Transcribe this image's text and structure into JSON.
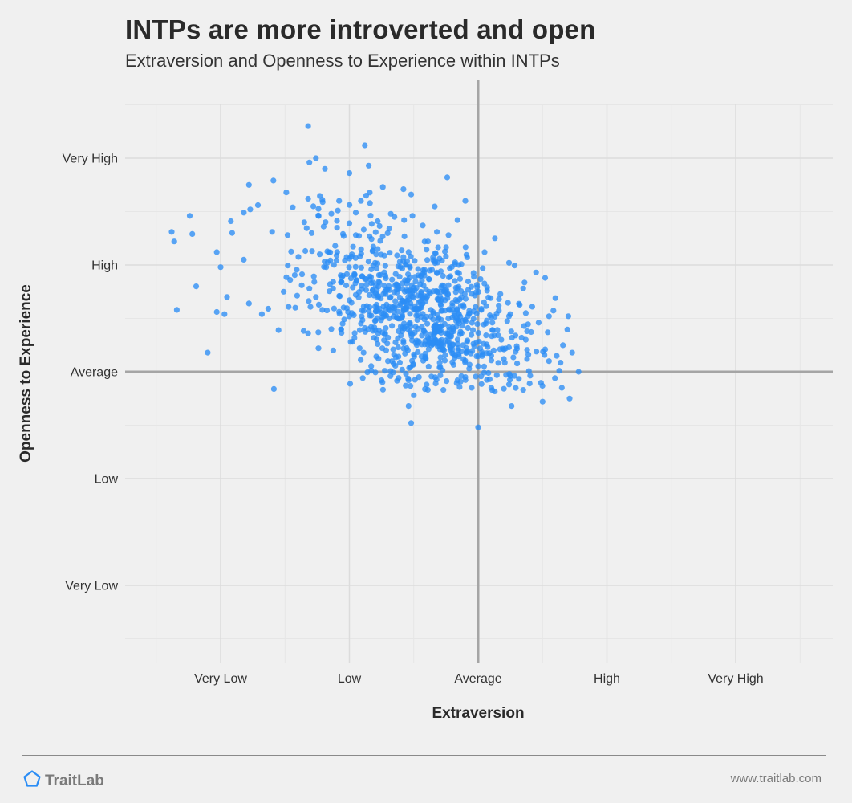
{
  "page": {
    "title": "INTPs are more introverted and open",
    "subtitle": "Extraversion and Openness to Experience within INTPs",
    "brand_name": "TraitLab",
    "brand_icon": "pentagon-logo-icon",
    "site_url": "www.traitlab.com"
  },
  "colors": {
    "point": "#2b8df5",
    "background": "#f0f0f0",
    "grid": "#dcdcdc",
    "reference_line": "#a5a5a5"
  },
  "chart_data": {
    "type": "scatter",
    "title": "INTPs are more introverted and open",
    "subtitle": "Extraversion and Openness to Experience within INTPs",
    "xlabel": "Extraversion",
    "ylabel": "Openness to Experience",
    "x_ticks": [
      {
        "value": -2,
        "label": "Very Low"
      },
      {
        "value": -1,
        "label": "Low"
      },
      {
        "value": 0,
        "label": "Average"
      },
      {
        "value": 1,
        "label": "High"
      },
      {
        "value": 2,
        "label": "Very High"
      }
    ],
    "y_ticks": [
      {
        "value": 2,
        "label": "Very High"
      },
      {
        "value": 1,
        "label": "High"
      },
      {
        "value": 0,
        "label": "Average"
      },
      {
        "value": -1,
        "label": "Low"
      },
      {
        "value": -2,
        "label": "Very Low"
      }
    ],
    "xlim": [
      -2.75,
      2.75
    ],
    "ylim": [
      -2.75,
      2.75
    ],
    "grid": true,
    "reference_lines": {
      "x": 0,
      "y": 0
    },
    "points": [
      [
        -1.32,
        2.3
      ],
      [
        -0.88,
        2.12
      ],
      [
        -1.26,
        2.0
      ],
      [
        -0.85,
        1.93
      ],
      [
        -1.78,
        1.75
      ],
      [
        -2.24,
        1.46
      ],
      [
        -2.22,
        1.29
      ],
      [
        -2.38,
        1.31
      ],
      [
        -2.36,
        1.22
      ],
      [
        -1.31,
        1.96
      ],
      [
        -1.19,
        1.9
      ],
      [
        -1.0,
        1.86
      ],
      [
        -0.24,
        1.82
      ],
      [
        -1.77,
        1.52
      ],
      [
        -1.82,
        1.49
      ],
      [
        -1.49,
        1.68
      ],
      [
        -1.59,
        1.79
      ],
      [
        -1.92,
        1.41
      ],
      [
        -1.71,
        1.56
      ],
      [
        -1.6,
        1.31
      ],
      [
        -1.82,
        1.05
      ],
      [
        -1.91,
        1.3
      ],
      [
        -2.0,
        0.98
      ],
      [
        -2.34,
        0.58
      ],
      [
        -2.03,
        0.56
      ],
      [
        -2.19,
        0.8
      ],
      [
        -1.95,
        0.7
      ],
      [
        -1.97,
        0.54
      ],
      [
        -1.78,
        0.64
      ],
      [
        -2.03,
        1.12
      ],
      [
        -1.68,
        0.54
      ],
      [
        -2.1,
        0.18
      ],
      [
        -1.14,
        1.48
      ],
      [
        -1.28,
        1.55
      ],
      [
        -1.48,
        1.28
      ],
      [
        -1.44,
        1.54
      ],
      [
        -1.32,
        1.62
      ],
      [
        -1.35,
        1.4
      ],
      [
        -1.29,
        1.13
      ],
      [
        -1.21,
        1.61
      ],
      [
        -1.23,
        1.1
      ],
      [
        -1.37,
        0.81
      ],
      [
        -1.51,
        0.75
      ],
      [
        -1.63,
        0.59
      ],
      [
        -1.46,
        0.86
      ],
      [
        -1.31,
        0.78
      ],
      [
        -0.95,
        1.49
      ],
      [
        -1.0,
        1.39
      ],
      [
        -1.08,
        1.6
      ],
      [
        -1.09,
        1.51
      ],
      [
        -0.91,
        1.6
      ],
      [
        -1.05,
        1.29
      ],
      [
        -0.84,
        1.58
      ],
      [
        -1.05,
        0.9
      ],
      [
        -1.18,
        0.98
      ],
      [
        -1.11,
        1.18
      ],
      [
        -1.0,
        1.06
      ],
      [
        -1.15,
        0.82
      ],
      [
        -1.26,
        0.7
      ],
      [
        -1.42,
        0.6
      ],
      [
        -1.55,
        0.39
      ],
      [
        -1.32,
        0.36
      ],
      [
        -0.87,
        1.65
      ],
      [
        -0.74,
        1.73
      ],
      [
        -0.58,
        1.71
      ],
      [
        -0.52,
        1.66
      ],
      [
        -0.65,
        1.45
      ],
      [
        -0.78,
        1.41
      ],
      [
        -0.69,
        1.34
      ],
      [
        -0.51,
        1.46
      ],
      [
        -0.43,
        1.37
      ],
      [
        -0.32,
        1.31
      ],
      [
        -0.39,
        1.22
      ],
      [
        -0.23,
        1.28
      ],
      [
        -0.16,
        1.42
      ],
      [
        -0.1,
        1.6
      ],
      [
        -0.15,
        1.0
      ],
      [
        -0.25,
        1.08
      ],
      [
        0.05,
        1.12
      ],
      [
        0.13,
        1.25
      ],
      [
        0.24,
        1.02
      ],
      [
        0.35,
        0.78
      ],
      [
        0.45,
        0.93
      ],
      [
        0.52,
        0.88
      ],
      [
        0.6,
        0.69
      ],
      [
        0.55,
        0.52
      ],
      [
        0.7,
        0.52
      ],
      [
        0.61,
        0.15
      ],
      [
        0.65,
        -0.15
      ],
      [
        0.78,
        0.0
      ],
      [
        0.71,
        -0.25
      ],
      [
        0.73,
        0.18
      ],
      [
        0.5,
        -0.28
      ],
      [
        0.35,
        -0.17
      ],
      [
        -0.52,
        -0.48
      ],
      [
        -1.24,
        0.22
      ],
      [
        -0.92,
        0.22
      ],
      [
        -0.54,
        -0.32
      ],
      [
        -0.5,
        -0.22
      ],
      [
        -0.4,
        -0.12
      ],
      [
        -0.27,
        -0.17
      ],
      [
        0.0,
        -0.52
      ],
      [
        -0.05,
        -0.15
      ],
      [
        0.09,
        -0.07
      ],
      [
        0.26,
        -0.32
      ],
      [
        0.4,
        -0.11
      ],
      [
        0.42,
        0.61
      ],
      [
        0.52,
        0.21
      ],
      [
        0.47,
        0.46
      ],
      [
        0.29,
        0.34
      ],
      [
        0.18,
        0.3
      ],
      [
        0.2,
        0.12
      ],
      [
        0.3,
        0.24
      ],
      [
        0.37,
        0.3
      ],
      [
        0.54,
        0.37
      ],
      [
        0.63,
        0.01
      ],
      [
        0.55,
        0.1
      ],
      [
        0.37,
        0.55
      ],
      [
        0.24,
        0.52
      ],
      [
        0.16,
        0.62
      ],
      [
        0.11,
        0.46
      ],
      [
        -0.42,
        0.38
      ],
      [
        -0.13,
        0.7
      ],
      [
        -0.08,
        0.41
      ],
      [
        -0.54,
        -0.08
      ],
      [
        -0.3,
        0.42
      ],
      [
        -0.46,
        -0.05
      ],
      [
        -0.16,
        -0.08
      ],
      [
        -0.2,
        0.09
      ],
      [
        -0.59,
        0.38
      ],
      [
        -0.59,
        0.02
      ],
      [
        -0.58,
        0.27
      ],
      [
        -0.78,
        1.15
      ],
      [
        -0.63,
        1.09
      ],
      [
        -0.56,
        1.0
      ],
      [
        -0.43,
        0.64
      ],
      [
        -0.35,
        1.07
      ],
      [
        -0.22,
        0.97
      ],
      [
        -0.18,
        0.85
      ],
      [
        -0.28,
        0.81
      ],
      [
        -0.49,
        0.59
      ],
      [
        -0.8,
        0.61
      ],
      [
        -0.73,
        0.52
      ],
      [
        -0.95,
        0.72
      ],
      [
        -1.04,
        0.49
      ],
      [
        -0.99,
        0.28
      ],
      [
        -0.88,
        0.41
      ],
      [
        -0.89,
        0.18
      ],
      [
        -0.78,
        0.26
      ],
      [
        -0.83,
        0.01
      ],
      [
        -0.75,
        -0.08
      ],
      [
        -0.66,
        0.21
      ],
      [
        -0.2,
        0.51
      ],
      [
        0.07,
        0.79
      ],
      [
        0.2,
        0.21
      ],
      [
        -0.03,
        0.24
      ],
      [
        0.38,
        0.12
      ],
      [
        -0.62,
        0.8
      ],
      [
        -0.34,
        0.31
      ],
      [
        -0.41,
        0.13
      ],
      [
        -0.27,
        0.21
      ],
      [
        -0.07,
        0.03
      ],
      [
        -0.08,
        0.52
      ],
      [
        -0.35,
        0.56
      ],
      [
        -0.45,
        0.82
      ],
      [
        -0.68,
        0.7
      ],
      [
        -0.69,
        0.5
      ],
      [
        -0.9,
        0.89
      ],
      [
        -0.72,
        0.9
      ],
      [
        -0.3,
        0.04
      ],
      [
        0.25,
        0.54
      ],
      [
        0.38,
        0.38
      ],
      [
        -0.7,
        0.32
      ],
      [
        -0.25,
        0.36
      ],
      [
        -0.1,
        -0.05
      ],
      [
        -0.16,
        0.26
      ],
      [
        -0.05,
        0.73
      ],
      [
        -0.2,
        0.62
      ],
      [
        -0.13,
        0.19
      ],
      [
        -0.41,
        0.29
      ],
      [
        -0.8,
        1.02
      ],
      [
        -0.98,
        1.1
      ],
      [
        -1.2,
        1.36
      ],
      [
        -0.95,
        1.28
      ],
      [
        -1.21,
        0.58
      ],
      [
        -0.7,
        0.1
      ],
      [
        -0.55,
        0.85
      ],
      [
        -1.14,
        0.4
      ],
      [
        -0.3,
        1.06
      ]
    ]
  }
}
